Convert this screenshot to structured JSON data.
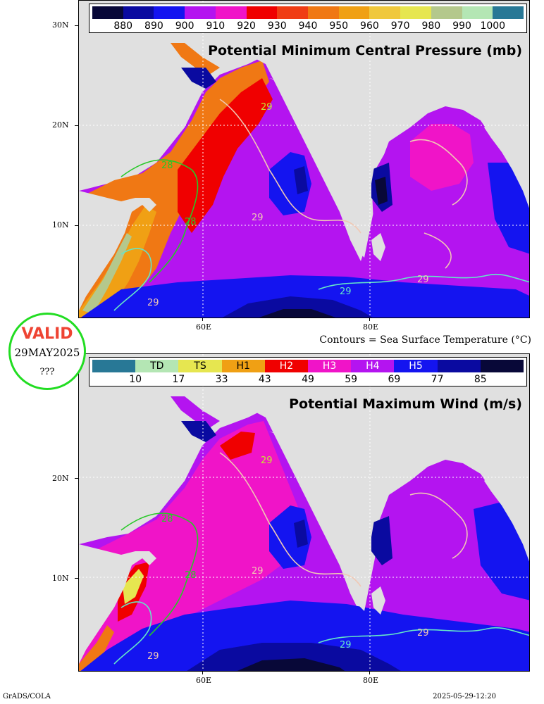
{
  "top_panel": {
    "title": "Potential Minimum Central Pressure (mb)",
    "colorbar": {
      "colors": [
        "#080838",
        "#0a0aa0",
        "#1414f0",
        "#b414f0",
        "#f014c8",
        "#f00000",
        "#f03c14",
        "#f07814",
        "#f0a014",
        "#f0c83c",
        "#e6e650",
        "#b4c88c",
        "#b4e6b4",
        "#287896"
      ],
      "tick_labels": [
        "880",
        "890",
        "900",
        "910",
        "920",
        "930",
        "940",
        "950",
        "960",
        "970",
        "980",
        "990",
        "1000"
      ]
    }
  },
  "bottom_panel": {
    "title": "Potential Maximum Wind (m/s)",
    "colorbar": {
      "colors": [
        "#287896",
        "#b4e6b4",
        "#e6e650",
        "#f0a014",
        "#f00000",
        "#f014c8",
        "#b414f0",
        "#1414f0",
        "#0a0aa0",
        "#080838"
      ],
      "category_labels": [
        "",
        "TD",
        "TS",
        "H1",
        "H2",
        "H3",
        "H4",
        "H5",
        "",
        ""
      ],
      "tick_labels": [
        "10",
        "17",
        "33",
        "43",
        "49",
        "59",
        "69",
        "77",
        "85"
      ]
    }
  },
  "axes": {
    "top_lat_labels": [
      "30N",
      "20N",
      "10N"
    ],
    "bottom_lat_labels": [
      "20N",
      "10N"
    ],
    "lon_labels": [
      "60E",
      "80E"
    ]
  },
  "contour_labels": [
    "29",
    "28",
    "28",
    "29",
    "29",
    "29",
    "29"
  ],
  "contours_note": "Contours = Sea Surface Temperature (°C)",
  "valid_badge": {
    "title": "VALID",
    "date": "29MAY2025",
    "extra": "???"
  },
  "footer": {
    "left": "GrADS/COLA",
    "right": "2025-05-29-12:20"
  }
}
